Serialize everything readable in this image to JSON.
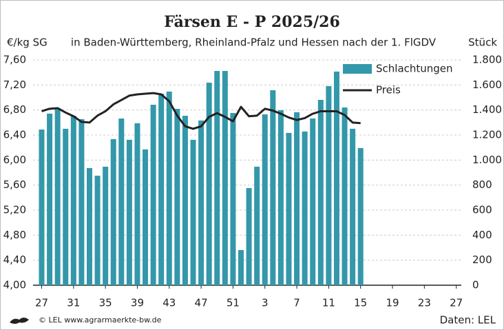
{
  "chart_data": {
    "type": "bar-line",
    "title": "Färsen E - P 2025/26",
    "subtitle": "in Baden-Württemberg, Rheinland-Pfalz und Hessen nach der 1. FlGDV",
    "y_axis_label": "€/kg SG",
    "y2_axis_label": "Stück",
    "source": "Daten: LEL",
    "copyright": "© LEL www.agrarmaerkte-bw.de",
    "categories": [
      "27",
      null,
      null,
      null,
      "31",
      null,
      null,
      null,
      "35",
      null,
      null,
      null,
      "39",
      null,
      null,
      null,
      "43",
      null,
      null,
      null,
      "47",
      null,
      null,
      null,
      "51",
      null,
      null,
      null,
      "3",
      null,
      null,
      null,
      "7",
      null,
      null,
      null,
      "11",
      null,
      null,
      null,
      "15",
      null,
      null,
      null,
      "19",
      null,
      null,
      null,
      "23",
      null,
      null,
      null,
      "27"
    ],
    "series": [
      {
        "name": "Schlachtungen",
        "type": "bar",
        "axis": "y2",
        "color": "#3398a9",
        "values": [
          1244,
          1371,
          1415,
          1250,
          1354,
          1327,
          936,
          875,
          947,
          1167,
          1332,
          1162,
          1294,
          1085,
          1442,
          1530,
          1547,
          1409,
          1354,
          1162,
          1316,
          1618,
          1712,
          1712,
          1376,
          281,
          776,
          947,
          1365,
          1558,
          1398,
          1217,
          1382,
          1228,
          1332,
          1481,
          1591,
          1707,
          1420,
          1250,
          1096,
          null,
          null,
          null,
          null,
          null,
          null,
          null,
          null,
          null,
          null,
          null,
          null
        ]
      },
      {
        "name": "Preis",
        "type": "line",
        "axis": "y",
        "color": "#222222",
        "values": [
          6.78,
          6.82,
          6.83,
          6.76,
          6.7,
          6.61,
          6.6,
          6.71,
          6.78,
          6.89,
          6.96,
          7.03,
          7.05,
          7.06,
          7.07,
          7.05,
          6.94,
          6.71,
          6.54,
          6.5,
          6.54,
          6.69,
          6.75,
          6.69,
          6.62,
          6.85,
          6.7,
          6.71,
          6.82,
          6.79,
          6.74,
          6.68,
          6.64,
          6.67,
          6.74,
          6.78,
          6.78,
          6.78,
          6.72,
          6.6,
          6.59,
          null,
          null,
          null,
          null,
          null,
          null,
          null,
          null,
          null,
          null,
          null,
          null
        ]
      }
    ],
    "ylim": [
      4,
      7.6
    ],
    "yticks": [
      {
        "value": 4,
        "label": "4,00"
      },
      {
        "value": 4.4,
        "label": "4,40"
      },
      {
        "value": 4.8,
        "label": "4,80"
      },
      {
        "value": 5.2,
        "label": "5,20"
      },
      {
        "value": 5.6,
        "label": "5,60"
      },
      {
        "value": 6,
        "label": "6,00"
      },
      {
        "value": 6.4,
        "label": "6,40"
      },
      {
        "value": 6.8,
        "label": "6,80"
      },
      {
        "value": 7.2,
        "label": "7,20"
      },
      {
        "value": 7.6,
        "label": "7,60"
      }
    ],
    "y2lim": [
      0,
      1800
    ],
    "y2ticks": [
      0,
      200,
      400,
      600,
      800,
      {
        "value": 1000,
        "label": "1.000"
      },
      {
        "value": 1200,
        "label": "1.200"
      },
      {
        "value": 1400,
        "label": "1.400"
      },
      {
        "value": 1600,
        "label": "1.600"
      },
      {
        "value": 1800,
        "label": "1.800"
      }
    ],
    "grid": true,
    "legend": "top-right"
  }
}
